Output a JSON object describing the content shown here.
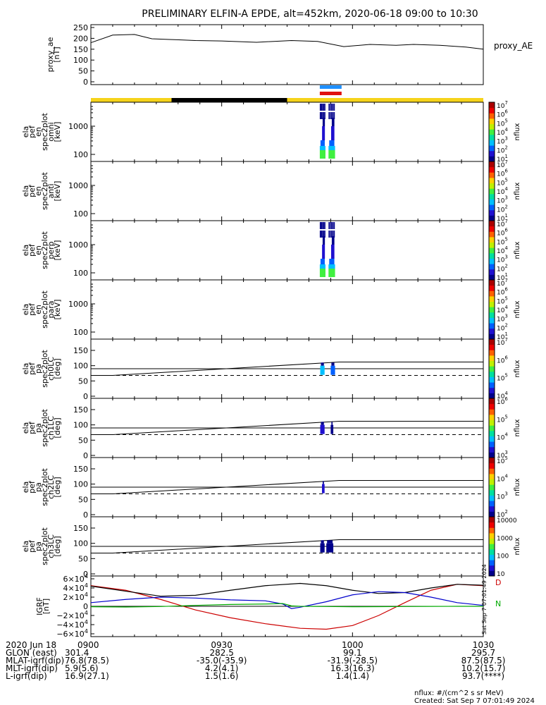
{
  "title": "PRELIMINARY ELFIN-A EPDE, alt=452km, 2020-06-18 09:00 to 10:30",
  "chart_data": [
    {
      "type": "line",
      "panel": "proxy_ae",
      "ylabel": [
        "proxy_ae",
        "[nT]"
      ],
      "right_label": "proxy_AE",
      "y_ticks": [
        "250",
        "200",
        "150",
        "100",
        "50",
        "0"
      ],
      "ylim": [
        0,
        250
      ],
      "x_minutes": [
        0,
        5,
        10,
        14,
        18,
        24,
        30,
        38,
        46,
        52,
        58,
        64,
        70,
        74,
        80,
        86,
        90
      ],
      "values": [
        180,
        215,
        218,
        198,
        195,
        190,
        188,
        182,
        190,
        186,
        162,
        172,
        168,
        172,
        168,
        160,
        150
      ]
    },
    {
      "type": "heatmap",
      "panel": "spec_omni",
      "ylabel": [
        "ela",
        "pef",
        "en",
        "spec2plot",
        "omni",
        "[keV]"
      ],
      "y_scale": "log",
      "y_ticks": [
        "1000",
        "100"
      ],
      "colorbar": {
        "label": "nflux",
        "ticks": [
          "10^7",
          "10^6",
          "10^5",
          "10^4",
          "10^3",
          "10^2",
          "10^1"
        ],
        "scale": "log"
      },
      "science_zone_minutes": [
        52.5,
        57.5
      ]
    },
    {
      "type": "heatmap",
      "panel": "spec_anti",
      "ylabel": [
        "ela",
        "pef",
        "en",
        "spec2plot",
        "anti",
        "[keV]"
      ],
      "y_scale": "log",
      "y_ticks": [
        "1000",
        "100"
      ],
      "colorbar": {
        "label": "nflux",
        "ticks": [
          "10^7",
          "10^6",
          "10^5",
          "10^4",
          "10^3",
          "10^2",
          "10^1"
        ],
        "scale": "log"
      }
    },
    {
      "type": "heatmap",
      "panel": "spec_perp",
      "ylabel": [
        "ela",
        "pef",
        "en",
        "spec2plot",
        "perp",
        "[keV]"
      ],
      "y_scale": "log",
      "y_ticks": [
        "1000",
        "100"
      ],
      "colorbar": {
        "label": "nflux",
        "ticks": [
          "10^7",
          "10^6",
          "10^5",
          "10^4",
          "10^3",
          "10^2",
          "10^1"
        ],
        "scale": "log"
      }
    },
    {
      "type": "heatmap",
      "panel": "spec_para",
      "ylabel": [
        "ela",
        "pef",
        "en",
        "spec2plot",
        "para",
        "[keV]"
      ],
      "y_scale": "log",
      "y_ticks": [
        "1000",
        "100"
      ],
      "colorbar": {
        "label": "nflux",
        "ticks": [
          "10^7",
          "10^6",
          "10^5",
          "10^4",
          "10^3",
          "10^2",
          "10^1"
        ],
        "scale": "log"
      }
    },
    {
      "type": "heatmap",
      "panel": "pa_ch0",
      "ylabel": [
        "ela",
        "pef",
        "pa",
        "spec2plot",
        "ch0LC",
        "[deg]"
      ],
      "y_ticks": [
        "150",
        "100",
        "50",
        "0"
      ],
      "ylim": [
        0,
        180
      ],
      "colorbar": {
        "label": "nflux",
        "ticks": [
          "10^7",
          "10^6",
          "10^5",
          "10^4"
        ],
        "scale": "log"
      }
    },
    {
      "type": "heatmap",
      "panel": "pa_ch1",
      "ylabel": [
        "ela",
        "pef",
        "pa",
        "spec2plot",
        "ch1LC",
        "[deg]"
      ],
      "y_ticks": [
        "150",
        "100",
        "50",
        "0"
      ],
      "ylim": [
        0,
        180
      ],
      "colorbar": {
        "label": "nflux",
        "ticks": [
          "10^6",
          "10^5",
          "10^4",
          "10^3"
        ],
        "scale": "log"
      }
    },
    {
      "type": "heatmap",
      "panel": "pa_ch2",
      "ylabel": [
        "ela",
        "pef",
        "pa",
        "spec2plot",
        "ch2LC",
        "[deg]"
      ],
      "y_ticks": [
        "150",
        "100",
        "50",
        "0"
      ],
      "ylim": [
        0,
        180
      ],
      "colorbar": {
        "label": "nflux",
        "ticks": [
          "10^5",
          "10^4",
          "10^3",
          "10^2"
        ],
        "scale": "log"
      }
    },
    {
      "type": "heatmap",
      "panel": "pa_ch3",
      "ylabel": [
        "ela",
        "pef",
        "pa",
        "spec2plot",
        "ch3LC",
        "[deg]"
      ],
      "y_ticks": [
        "150",
        "100",
        "50",
        "0"
      ],
      "ylim": [
        0,
        180
      ],
      "colorbar": {
        "label": "nflux",
        "ticks": [
          "10000",
          "1000",
          "100",
          "10"
        ],
        "scale": "log"
      }
    },
    {
      "type": "line",
      "panel": "igrf",
      "ylabel": [
        "IGRF",
        "[nT]"
      ],
      "y_ticks": [
        "6×10^4",
        "4×10^4",
        "2×10^4",
        "0",
        "−2×10^4",
        "−4×10^4",
        "−6×10^4"
      ],
      "ylim": [
        -60000,
        60000
      ],
      "series": [
        {
          "name": "D",
          "color": "#cc0000",
          "x_minutes": [
            0,
            8,
            16,
            24,
            32,
            40,
            48,
            54,
            60,
            66,
            72,
            78,
            84,
            90
          ],
          "values": [
            45000,
            35000,
            15000,
            -8000,
            -25000,
            -38000,
            -48000,
            -50000,
            -42000,
            -20000,
            8000,
            35000,
            48000,
            45000
          ]
        },
        {
          "name": "",
          "color": "#000000",
          "x_minutes": [
            0,
            8,
            16,
            24,
            32,
            40,
            48,
            54,
            60,
            66,
            72,
            78,
            84,
            90
          ],
          "values": [
            44000,
            33000,
            22000,
            24000,
            35000,
            45000,
            50000,
            45000,
            35000,
            28000,
            30000,
            40000,
            48000,
            46000
          ]
        },
        {
          "name": "",
          "color": "#0000cc",
          "x_minutes": [
            0,
            8,
            16,
            24,
            32,
            40,
            44,
            46,
            48,
            54,
            60,
            66,
            72,
            78,
            84,
            90
          ],
          "values": [
            8000,
            15000,
            20000,
            18000,
            14000,
            12000,
            5000,
            -5000,
            -2000,
            10000,
            25000,
            32000,
            30000,
            20000,
            8000,
            2000
          ]
        },
        {
          "name": "N",
          "color": "#00aa00",
          "x_minutes": [
            0,
            8,
            16,
            24,
            32,
            40,
            44,
            46,
            48,
            54,
            60,
            66,
            72,
            78,
            84,
            90
          ],
          "values": [
            -1000,
            -1500,
            -500,
            2000,
            4000,
            5000,
            6000,
            1000,
            0,
            -500,
            -1000,
            -800,
            -500,
            -200,
            0,
            0
          ]
        }
      ]
    }
  ],
  "ephem_row_labels": [
    "2020 Jun 18",
    "GLON (east)",
    "MLAT-igrf(dip)",
    "MLT-igrf(dip)",
    "L-igrf(dip)"
  ],
  "ephem_columns": [
    {
      "x_minutes": 0,
      "values": [
        "0900",
        "301.4",
        "76.8(78.5)",
        "5.9(5.6)",
        "16.9(27.1)"
      ]
    },
    {
      "x_minutes": 30,
      "values": [
        "0930",
        "282.5",
        "-35.0(-35.9)",
        "4.2(4.1)",
        "1.5(1.6)"
      ]
    },
    {
      "x_minutes": 60,
      "values": [
        "1000",
        "99.1",
        "-31.9(-28.5)",
        "16.3(16.3)",
        "1.4(1.4)"
      ]
    },
    {
      "x_minutes": 90,
      "values": [
        "1030",
        "295.7",
        "87.5(87.5)",
        "10.2(15.7)",
        "93.7(****)"
      ]
    }
  ],
  "footer": {
    "units": "nflux: #/(cm^2 s sr MeV)",
    "created": "Created: Sat Sep  7 07:01:49 2024",
    "side_stamp": "Sat Sep  7 07:01:49 2024"
  },
  "colors": {
    "yellow": "#f6d31a",
    "blue": "#1e90ff",
    "red": "#e01010"
  }
}
